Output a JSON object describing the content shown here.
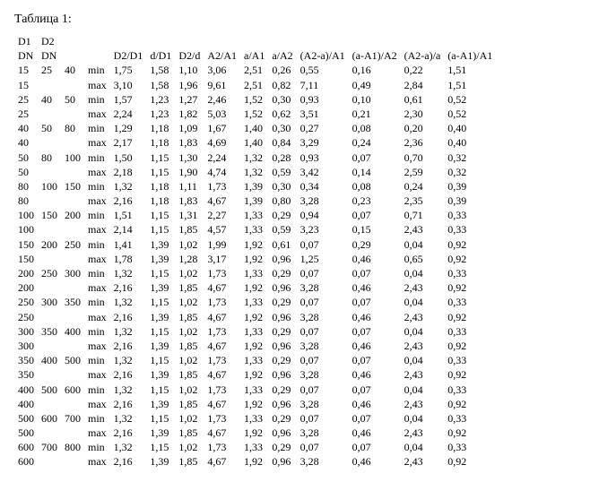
{
  "title": "Таблица 1:",
  "head_top": {
    "c0": "D1",
    "c1": "D2"
  },
  "head": {
    "c0": "DN",
    "c1": "DN",
    "c2": "",
    "c3": "",
    "c4": "D2/D1",
    "c5": "d/D1",
    "c6": "D2/d",
    "c7": "A2/A1",
    "c8": "a/A1",
    "c9": "a/A2",
    "c10": "(A2-a)/A1",
    "c11": "(a-A1)/A2",
    "c12": "(A2-a)/a",
    "c13": "(a-A1)/A1"
  },
  "rows": [
    [
      "15",
      "25",
      "40",
      "min",
      "1,75",
      "1,58",
      "1,10",
      "3,06",
      "2,51",
      "0,26",
      "0,55",
      "0,16",
      "0,22",
      "1,51"
    ],
    [
      "15",
      "",
      "",
      "max",
      "3,10",
      "1,58",
      "1,96",
      "9,61",
      "2,51",
      "0,82",
      "7,11",
      "0,49",
      "2,84",
      "1,51"
    ],
    [
      "25",
      "40",
      "50",
      "min",
      "1,57",
      "1,23",
      "1,27",
      "2,46",
      "1,52",
      "0,30",
      "0,93",
      "0,10",
      "0,61",
      "0,52"
    ],
    [
      "25",
      "",
      "",
      "max",
      "2,24",
      "1,23",
      "1,82",
      "5,03",
      "1,52",
      "0,62",
      "3,51",
      "0,21",
      "2,30",
      "0,52"
    ],
    [
      "40",
      "50",
      "80",
      "min",
      "1,29",
      "1,18",
      "1,09",
      "1,67",
      "1,40",
      "0,30",
      "0,27",
      "0,08",
      "0,20",
      "0,40"
    ],
    [
      "40",
      "",
      "",
      "max",
      "2,17",
      "1,18",
      "1,83",
      "4,69",
      "1,40",
      "0,84",
      "3,29",
      "0,24",
      "2,36",
      "0,40"
    ],
    [
      "50",
      "80",
      "100",
      "min",
      "1,50",
      "1,15",
      "1,30",
      "2,24",
      "1,32",
      "0,28",
      "0,93",
      "0,07",
      "0,70",
      "0,32"
    ],
    [
      "50",
      "",
      "",
      "max",
      "2,18",
      "1,15",
      "1,90",
      "4,74",
      "1,32",
      "0,59",
      "3,42",
      "0,14",
      "2,59",
      "0,32"
    ],
    [
      "80",
      "100",
      "150",
      "min",
      "1,32",
      "1,18",
      "1,11",
      "1,73",
      "1,39",
      "0,30",
      "0,34",
      "0,08",
      "0,24",
      "0,39"
    ],
    [
      "80",
      "",
      "",
      "max",
      "2,16",
      "1,18",
      "1,83",
      "4,67",
      "1,39",
      "0,80",
      "3,28",
      "0,23",
      "2,35",
      "0,39"
    ],
    [
      "100",
      "150",
      "200",
      "min",
      "1,51",
      "1,15",
      "1,31",
      "2,27",
      "1,33",
      "0,29",
      "0,94",
      "0,07",
      "0,71",
      "0,33"
    ],
    [
      "100",
      "",
      "",
      "max",
      "2,14",
      "1,15",
      "1,85",
      "4,57",
      "1,33",
      "0,59",
      "3,23",
      "0,15",
      "2,43",
      "0,33"
    ],
    [
      "150",
      "200",
      "250",
      "min",
      "1,41",
      "1,39",
      "1,02",
      "1,99",
      "1,92",
      "0,61",
      "0,07",
      "0,29",
      "0,04",
      "0,92"
    ],
    [
      "150",
      "",
      "",
      "max",
      "1,78",
      "1,39",
      "1,28",
      "3,17",
      "1,92",
      "0,96",
      "1,25",
      "0,46",
      "0,65",
      "0,92"
    ],
    [
      "200",
      "250",
      "300",
      "min",
      "1,32",
      "1,15",
      "1,02",
      "1,73",
      "1,33",
      "0,29",
      "0,07",
      "0,07",
      "0,04",
      "0,33"
    ],
    [
      "200",
      "",
      "",
      "max",
      "2,16",
      "1,39",
      "1,85",
      "4,67",
      "1,92",
      "0,96",
      "3,28",
      "0,46",
      "2,43",
      "0,92"
    ],
    [
      "250",
      "300",
      "350",
      "min",
      "1,32",
      "1,15",
      "1,02",
      "1,73",
      "1,33",
      "0,29",
      "0,07",
      "0,07",
      "0,04",
      "0,33"
    ],
    [
      "250",
      "",
      "",
      "max",
      "2,16",
      "1,39",
      "1,85",
      "4,67",
      "1,92",
      "0,96",
      "3,28",
      "0,46",
      "2,43",
      "0,92"
    ],
    [
      "300",
      "350",
      "400",
      "min",
      "1,32",
      "1,15",
      "1,02",
      "1,73",
      "1,33",
      "0,29",
      "0,07",
      "0,07",
      "0,04",
      "0,33"
    ],
    [
      "300",
      "",
      "",
      "max",
      "2,16",
      "1,39",
      "1,85",
      "4,67",
      "1,92",
      "0,96",
      "3,28",
      "0,46",
      "2,43",
      "0,92"
    ],
    [
      "350",
      "400",
      "500",
      "min",
      "1,32",
      "1,15",
      "1,02",
      "1,73",
      "1,33",
      "0,29",
      "0,07",
      "0,07",
      "0,04",
      "0,33"
    ],
    [
      "350",
      "",
      "",
      "max",
      "2,16",
      "1,39",
      "1,85",
      "4,67",
      "1,92",
      "0,96",
      "3,28",
      "0,46",
      "2,43",
      "0,92"
    ],
    [
      "400",
      "500",
      "600",
      "min",
      "1,32",
      "1,15",
      "1,02",
      "1,73",
      "1,33",
      "0,29",
      "0,07",
      "0,07",
      "0,04",
      "0,33"
    ],
    [
      "400",
      "",
      "",
      "max",
      "2,16",
      "1,39",
      "1,85",
      "4,67",
      "1,92",
      "0,96",
      "3,28",
      "0,46",
      "2,43",
      "0,92"
    ],
    [
      "500",
      "600",
      "700",
      "min",
      "1,32",
      "1,15",
      "1,02",
      "1,73",
      "1,33",
      "0,29",
      "0,07",
      "0,07",
      "0,04",
      "0,33"
    ],
    [
      "500",
      "",
      "",
      "max",
      "2,16",
      "1,39",
      "1,85",
      "4,67",
      "1,92",
      "0,96",
      "3,28",
      "0,46",
      "2,43",
      "0,92"
    ],
    [
      "600",
      "700",
      "800",
      "min",
      "1,32",
      "1,15",
      "1,02",
      "1,73",
      "1,33",
      "0,29",
      "0,07",
      "0,07",
      "0,04",
      "0,33"
    ],
    [
      "600",
      "",
      "",
      "max",
      "2,16",
      "1,39",
      "1,85",
      "4,67",
      "1,92",
      "0,96",
      "3,28",
      "0,46",
      "2,43",
      "0,92"
    ]
  ]
}
